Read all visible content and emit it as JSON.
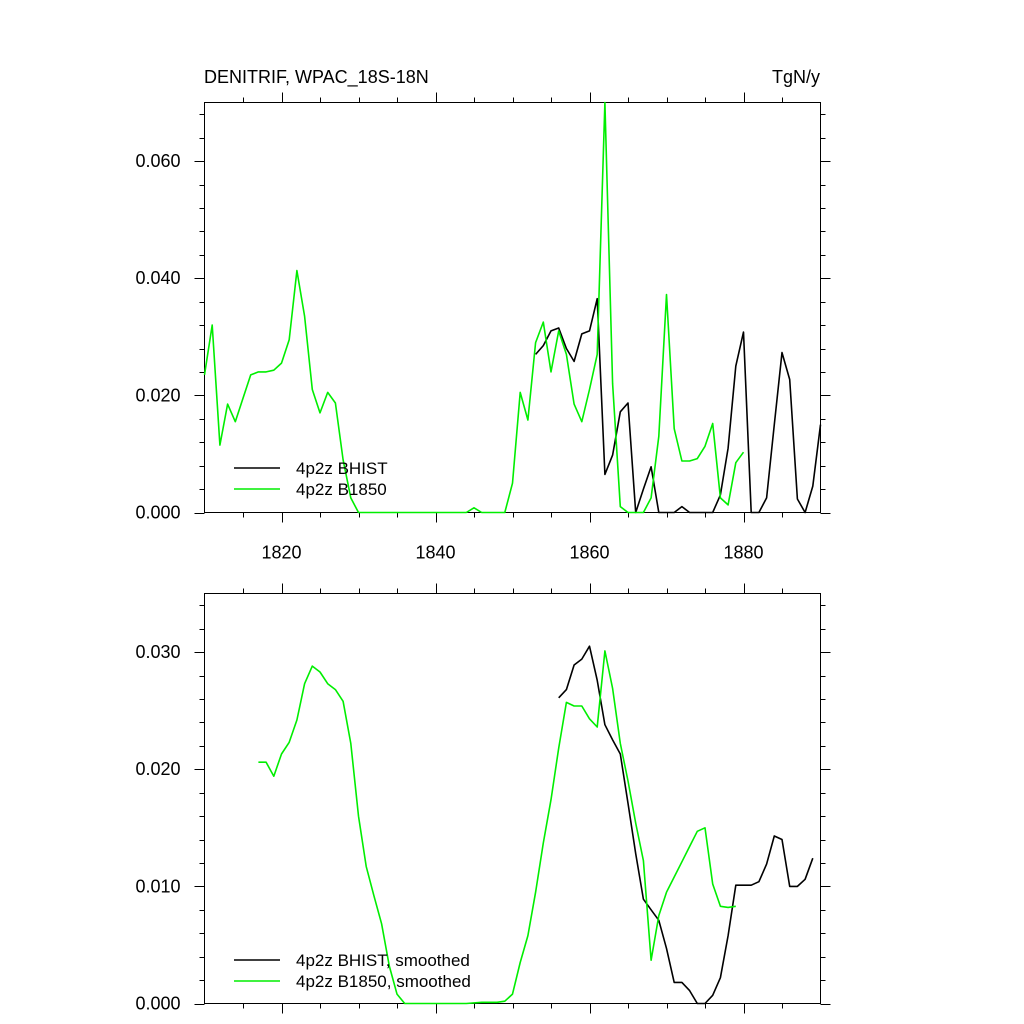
{
  "chart_data": [
    {
      "type": "line",
      "title": "DENITRIF, WPAC_18S-18N",
      "units": "TgN/y",
      "xlim": [
        1810,
        1890
      ],
      "ylim": [
        0,
        0.07
      ],
      "x_ticks": [
        1820,
        1840,
        1860,
        1880
      ],
      "x_tick_labels": [
        "1820",
        "1840",
        "1860",
        "1880"
      ],
      "y_ticks": [
        0,
        0.02,
        0.04,
        0.06
      ],
      "y_tick_labels": [
        "0.000",
        "0.020",
        "0.040",
        "0.060"
      ],
      "legend_position": "lower-left",
      "series": [
        {
          "name": "4p2z BHIST",
          "color": "#000000",
          "points": [
            [
              1853,
              0.027
            ],
            [
              1854,
              0.0285
            ],
            [
              1855,
              0.031
            ],
            [
              1856,
              0.0315
            ],
            [
              1857,
              0.028
            ],
            [
              1858,
              0.0258
            ],
            [
              1859,
              0.0305
            ],
            [
              1860,
              0.031
            ],
            [
              1861,
              0.0365
            ],
            [
              1862,
              0.0065
            ],
            [
              1863,
              0.0098
            ],
            [
              1864,
              0.0172
            ],
            [
              1865,
              0.0187
            ],
            [
              1866,
              0.0
            ],
            [
              1867,
              0.004
            ],
            [
              1868,
              0.0078
            ],
            [
              1869,
              0.0
            ],
            [
              1870,
              0.0
            ],
            [
              1871,
              0.0
            ],
            [
              1872,
              0.001
            ],
            [
              1873,
              0.0
            ],
            [
              1874,
              0.0
            ],
            [
              1875,
              0.0
            ],
            [
              1876,
              0.0
            ],
            [
              1877,
              0.003
            ],
            [
              1878,
              0.011
            ],
            [
              1879,
              0.025
            ],
            [
              1880,
              0.0308
            ],
            [
              1881,
              0.0
            ],
            [
              1882,
              0.0
            ],
            [
              1883,
              0.0025
            ],
            [
              1884,
              0.015
            ],
            [
              1885,
              0.0273
            ],
            [
              1886,
              0.0227
            ],
            [
              1887,
              0.0023
            ],
            [
              1888,
              0.0
            ],
            [
              1889,
              0.0045
            ],
            [
              1890,
              0.015
            ]
          ]
        },
        {
          "name": "4p2z B1850",
          "color": "#00ee00",
          "points": [
            [
              1810,
              0.0235
            ],
            [
              1811,
              0.032
            ],
            [
              1812,
              0.0115
            ],
            [
              1813,
              0.0185
            ],
            [
              1814,
              0.0155
            ],
            [
              1815,
              0.0195
            ],
            [
              1816,
              0.0235
            ],
            [
              1817,
              0.024
            ],
            [
              1818,
              0.024
            ],
            [
              1819,
              0.0243
            ],
            [
              1820,
              0.0255
            ],
            [
              1821,
              0.0295
            ],
            [
              1822,
              0.0413
            ],
            [
              1823,
              0.0335
            ],
            [
              1824,
              0.021
            ],
            [
              1825,
              0.017
            ],
            [
              1826,
              0.0205
            ],
            [
              1827,
              0.0187
            ],
            [
              1828,
              0.009
            ],
            [
              1829,
              0.0025
            ],
            [
              1830,
              0.0
            ],
            [
              1832,
              0.0
            ],
            [
              1835,
              0.0
            ],
            [
              1838,
              0.0
            ],
            [
              1840,
              0.0
            ],
            [
              1843,
              0.0
            ],
            [
              1844,
              0.0
            ],
            [
              1845,
              0.0008
            ],
            [
              1846,
              0.0
            ],
            [
              1848,
              0.0
            ],
            [
              1849,
              0.0
            ],
            [
              1850,
              0.005
            ],
            [
              1851,
              0.0205
            ],
            [
              1852,
              0.0158
            ],
            [
              1853,
              0.029
            ],
            [
              1854,
              0.0325
            ],
            [
              1855,
              0.024
            ],
            [
              1856,
              0.031
            ],
            [
              1857,
              0.027
            ],
            [
              1858,
              0.0185
            ],
            [
              1859,
              0.0155
            ],
            [
              1860,
              0.021
            ],
            [
              1861,
              0.027
            ],
            [
              1862,
              0.07
            ],
            [
              1863,
              0.022
            ],
            [
              1864,
              0.001
            ],
            [
              1865,
              0.0
            ],
            [
              1866,
              0.0
            ],
            [
              1867,
              0.0
            ],
            [
              1868,
              0.0025
            ],
            [
              1869,
              0.013
            ],
            [
              1870,
              0.0372
            ],
            [
              1871,
              0.0143
            ],
            [
              1872,
              0.0088
            ],
            [
              1873,
              0.0088
            ],
            [
              1874,
              0.0092
            ],
            [
              1875,
              0.0113
            ],
            [
              1876,
              0.0152
            ],
            [
              1877,
              0.0025
            ],
            [
              1878,
              0.0013
            ],
            [
              1879,
              0.0085
            ],
            [
              1880,
              0.0103
            ]
          ]
        }
      ]
    },
    {
      "type": "line",
      "title": "",
      "xlim": [
        1810,
        1890
      ],
      "ylim": [
        0,
        0.035
      ],
      "x_ticks": [
        1820,
        1840,
        1860,
        1880
      ],
      "y_ticks": [
        0,
        0.01,
        0.02,
        0.03
      ],
      "y_tick_labels": [
        "0.000",
        "0.010",
        "0.020",
        "0.030"
      ],
      "legend_position": "lower-left",
      "series": [
        {
          "name": "4p2z BHIST, smoothed",
          "color": "#000000",
          "points": [
            [
              1856,
              0.0261
            ],
            [
              1857,
              0.0268
            ],
            [
              1858,
              0.0289
            ],
            [
              1859,
              0.0294
            ],
            [
              1860,
              0.0305
            ],
            [
              1861,
              0.0276
            ],
            [
              1862,
              0.0238
            ],
            [
              1863,
              0.0225
            ],
            [
              1864,
              0.0213
            ],
            [
              1865,
              0.0171
            ],
            [
              1866,
              0.0128
            ],
            [
              1867,
              0.0089
            ],
            [
              1868,
              0.008
            ],
            [
              1869,
              0.0071
            ],
            [
              1870,
              0.0047
            ],
            [
              1871,
              0.0018
            ],
            [
              1872,
              0.0018
            ],
            [
              1873,
              0.0011
            ],
            [
              1874,
              0.0
            ],
            [
              1875,
              0.0
            ],
            [
              1876,
              0.0007
            ],
            [
              1877,
              0.0022
            ],
            [
              1878,
              0.0058
            ],
            [
              1879,
              0.0101
            ],
            [
              1880,
              0.0101
            ],
            [
              1881,
              0.0101
            ],
            [
              1882,
              0.0104
            ],
            [
              1883,
              0.0119
            ],
            [
              1884,
              0.0143
            ],
            [
              1885,
              0.014
            ],
            [
              1886,
              0.01
            ],
            [
              1887,
              0.01
            ],
            [
              1888,
              0.0106
            ],
            [
              1889,
              0.0124
            ]
          ]
        },
        {
          "name": "4p2z B1850, smoothed",
          "color": "#00ee00",
          "points": [
            [
              1817,
              0.0206
            ],
            [
              1818,
              0.0206
            ],
            [
              1819,
              0.0194
            ],
            [
              1820,
              0.0213
            ],
            [
              1821,
              0.0223
            ],
            [
              1822,
              0.0242
            ],
            [
              1823,
              0.0273
            ],
            [
              1824,
              0.0288
            ],
            [
              1825,
              0.0283
            ],
            [
              1826,
              0.0273
            ],
            [
              1827,
              0.0268
            ],
            [
              1828,
              0.0258
            ],
            [
              1829,
              0.0222
            ],
            [
              1830,
              0.016
            ],
            [
              1831,
              0.0117
            ],
            [
              1832,
              0.0092
            ],
            [
              1833,
              0.0068
            ],
            [
              1834,
              0.0032
            ],
            [
              1835,
              0.0008
            ],
            [
              1836,
              0.0
            ],
            [
              1838,
              0.0
            ],
            [
              1840,
              0.0
            ],
            [
              1842,
              0.0
            ],
            [
              1844,
              0.0
            ],
            [
              1846,
              0.0001
            ],
            [
              1848,
              0.0001
            ],
            [
              1849,
              0.0002
            ],
            [
              1850,
              0.0008
            ],
            [
              1851,
              0.0035
            ],
            [
              1852,
              0.0058
            ],
            [
              1853,
              0.0095
            ],
            [
              1854,
              0.0137
            ],
            [
              1855,
              0.0174
            ],
            [
              1856,
              0.0218
            ],
            [
              1857,
              0.0257
            ],
            [
              1858,
              0.0254
            ],
            [
              1859,
              0.0254
            ],
            [
              1860,
              0.0243
            ],
            [
              1861,
              0.0236
            ],
            [
              1862,
              0.0301
            ],
            [
              1863,
              0.0269
            ],
            [
              1864,
              0.0222
            ],
            [
              1865,
              0.019
            ],
            [
              1866,
              0.0154
            ],
            [
              1867,
              0.0122
            ],
            [
              1868,
              0.0037
            ],
            [
              1869,
              0.0075
            ],
            [
              1870,
              0.0095
            ],
            [
              1871,
              0.0108
            ],
            [
              1872,
              0.0121
            ],
            [
              1873,
              0.0134
            ],
            [
              1874,
              0.0147
            ],
            [
              1875,
              0.015
            ],
            [
              1876,
              0.0102
            ],
            [
              1877,
              0.0083
            ],
            [
              1878,
              0.0082
            ],
            [
              1879,
              0.0083
            ]
          ]
        }
      ]
    }
  ]
}
